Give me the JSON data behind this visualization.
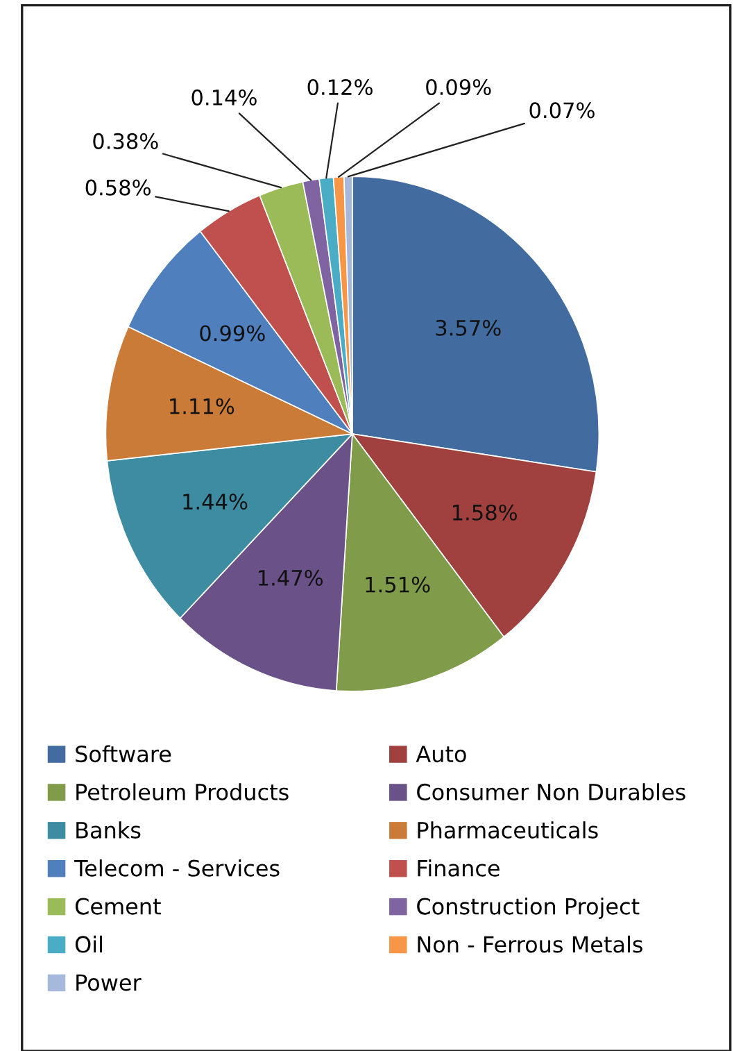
{
  "chart_data": {
    "type": "pie",
    "categories": [
      "Software",
      "Auto",
      "Petroleum Products",
      "Consumer Non Durables",
      "Banks",
      "Pharmaceuticals",
      "Telecom - Services",
      "Finance",
      "Cement",
      "Construction Project",
      "Oil",
      "Non - Ferrous Metals",
      "Power"
    ],
    "values": [
      3.57,
      1.58,
      1.51,
      1.47,
      1.44,
      1.11,
      0.99,
      0.58,
      0.38,
      0.14,
      0.12,
      0.09,
      0.07
    ],
    "value_labels": [
      "3.57%",
      "1.58%",
      "1.51%",
      "1.47%",
      "1.44%",
      "1.11%",
      "0.99%",
      "0.58%",
      "0.38%",
      "0.14%",
      "0.12%",
      "0.09%",
      "0.07%"
    ],
    "colors": [
      "#426b9f",
      "#a0413f",
      "#809b49",
      "#6a5288",
      "#3d8ca2",
      "#cb7b38",
      "#4f7fbd",
      "#c0504d",
      "#9bbb59",
      "#8064a2",
      "#4bacc6",
      "#f79646",
      "#a6b9da"
    ],
    "legend": "bottom"
  }
}
